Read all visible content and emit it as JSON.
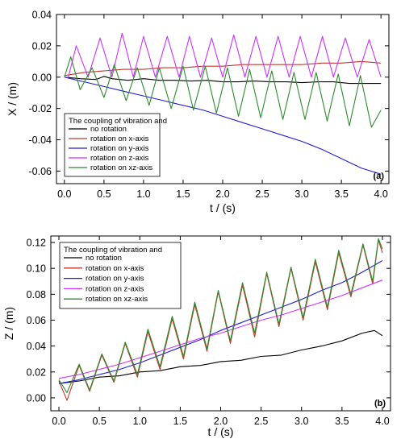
{
  "chart_data": [
    {
      "type": "line",
      "panel_label": "(a)",
      "xlabel": "t / (s)",
      "ylabel": "X / (m)",
      "xlim": [
        -0.1,
        4.1
      ],
      "ylim": [
        -0.068,
        0.04
      ],
      "x_ticks": [
        "0.0",
        "0.5",
        "1.0",
        "1.5",
        "2.0",
        "2.5",
        "3.0",
        "3.5",
        "4.0"
      ],
      "y_ticks": [
        "-0.06",
        "-0.04",
        "-0.02",
        "0.00",
        "0.02",
        "0.04"
      ],
      "legend_title": "The coupling of vibration and",
      "legend_position": "lower-left",
      "series": [
        {
          "name": "no rotation",
          "color": "#000000",
          "points": [
            [
              0.0,
              0.0
            ],
            [
              0.2,
              -0.001
            ],
            [
              0.4,
              -0.0015
            ],
            [
              0.5,
              0.0005
            ],
            [
              0.6,
              -0.001
            ],
            [
              0.8,
              -0.002
            ],
            [
              1.0,
              -0.001
            ],
            [
              1.2,
              -0.002
            ],
            [
              1.4,
              -0.002
            ],
            [
              1.6,
              -0.0025
            ],
            [
              1.8,
              -0.002
            ],
            [
              2.0,
              -0.003
            ],
            [
              2.2,
              -0.003
            ],
            [
              2.4,
              -0.0025
            ],
            [
              2.6,
              -0.003
            ],
            [
              2.8,
              -0.003
            ],
            [
              3.0,
              -0.0035
            ],
            [
              3.2,
              -0.003
            ],
            [
              3.4,
              -0.003
            ],
            [
              3.6,
              -0.004
            ],
            [
              3.8,
              -0.004
            ],
            [
              4.0,
              -0.004
            ]
          ]
        },
        {
          "name": "rotation on x-axis",
          "color": "#c0392b",
          "points": [
            [
              0.0,
              0.001
            ],
            [
              0.25,
              0.003
            ],
            [
              0.5,
              0.004
            ],
            [
              0.75,
              0.005
            ],
            [
              1.0,
              0.005
            ],
            [
              1.25,
              0.006
            ],
            [
              1.5,
              0.006
            ],
            [
              1.75,
              0.007
            ],
            [
              2.0,
              0.007
            ],
            [
              2.25,
              0.008
            ],
            [
              2.5,
              0.008
            ],
            [
              2.75,
              0.008
            ],
            [
              3.0,
              0.008
            ],
            [
              3.25,
              0.009
            ],
            [
              3.5,
              0.009
            ],
            [
              3.75,
              0.01
            ],
            [
              4.0,
              0.009
            ]
          ]
        },
        {
          "name": "rotation on y-axis",
          "color": "#1f1fd6",
          "points": [
            [
              0.0,
              0.0
            ],
            [
              0.25,
              -0.003
            ],
            [
              0.5,
              -0.006
            ],
            [
              0.75,
              -0.009
            ],
            [
              1.0,
              -0.012
            ],
            [
              1.25,
              -0.015
            ],
            [
              1.5,
              -0.018
            ],
            [
              1.75,
              -0.021
            ],
            [
              2.0,
              -0.025
            ],
            [
              2.25,
              -0.029
            ],
            [
              2.5,
              -0.033
            ],
            [
              2.75,
              -0.037
            ],
            [
              3.0,
              -0.041
            ],
            [
              3.25,
              -0.046
            ],
            [
              3.5,
              -0.052
            ],
            [
              3.75,
              -0.058
            ],
            [
              4.0,
              -0.062
            ]
          ]
        },
        {
          "name": "rotation on z-axis",
          "color": "#cc33ff",
          "points": [
            [
              0.0,
              0.0
            ],
            [
              0.05,
              0.0
            ],
            [
              0.15,
              0.02
            ],
            [
              0.3,
              0.0
            ],
            [
              0.45,
              0.025
            ],
            [
              0.6,
              0.0
            ],
            [
              0.73,
              0.028
            ],
            [
              0.87,
              0.0
            ],
            [
              1.0,
              0.026
            ],
            [
              1.15,
              0.0
            ],
            [
              1.3,
              0.026
            ],
            [
              1.45,
              0.0
            ],
            [
              1.58,
              0.026
            ],
            [
              1.72,
              0.0
            ],
            [
              1.86,
              0.025
            ],
            [
              2.0,
              0.0
            ],
            [
              2.14,
              0.027
            ],
            [
              2.28,
              0.0
            ],
            [
              2.42,
              0.026
            ],
            [
              2.56,
              0.0
            ],
            [
              2.7,
              0.026
            ],
            [
              2.84,
              0.0
            ],
            [
              2.98,
              0.026
            ],
            [
              3.12,
              0.0
            ],
            [
              3.26,
              0.026
            ],
            [
              3.4,
              0.0
            ],
            [
              3.55,
              0.025
            ],
            [
              3.7,
              0.0
            ],
            [
              3.85,
              0.024
            ],
            [
              4.0,
              0.0
            ]
          ]
        },
        {
          "name": "rotation on xz-axis",
          "color": "#2e8b2e",
          "points": [
            [
              0.0,
              0.0
            ],
            [
              0.08,
              0.013
            ],
            [
              0.2,
              -0.008
            ],
            [
              0.35,
              0.006
            ],
            [
              0.5,
              -0.013
            ],
            [
              0.63,
              0.008
            ],
            [
              0.78,
              -0.015
            ],
            [
              0.92,
              0.006
            ],
            [
              1.07,
              -0.018
            ],
            [
              1.2,
              0.006
            ],
            [
              1.35,
              -0.02
            ],
            [
              1.5,
              0.007
            ],
            [
              1.63,
              -0.021
            ],
            [
              1.78,
              0.007
            ],
            [
              1.92,
              -0.023
            ],
            [
              2.06,
              0.006
            ],
            [
              2.2,
              -0.025
            ],
            [
              2.34,
              0.005
            ],
            [
              2.48,
              -0.026
            ],
            [
              2.62,
              0.004
            ],
            [
              2.76,
              -0.027
            ],
            [
              2.9,
              0.003
            ],
            [
              3.04,
              -0.027
            ],
            [
              3.18,
              0.003
            ],
            [
              3.32,
              -0.028
            ],
            [
              3.46,
              0.002
            ],
            [
              3.6,
              -0.031
            ],
            [
              3.74,
              0.001
            ],
            [
              3.88,
              -0.032
            ],
            [
              4.0,
              -0.021
            ]
          ]
        }
      ]
    },
    {
      "type": "line",
      "panel_label": "(b)",
      "xlabel": "t / (s)",
      "ylabel": "Z / (m)",
      "xlim": [
        -0.1,
        4.1
      ],
      "ylim": [
        -0.01,
        0.125
      ],
      "x_ticks": [
        "0.0",
        "0.5",
        "1.0",
        "1.5",
        "2.0",
        "2.5",
        "3.0",
        "3.5",
        "4.0"
      ],
      "y_ticks": [
        "0.00",
        "0.02",
        "0.04",
        "0.06",
        "0.08",
        "0.10",
        "0.12"
      ],
      "legend_title": "The coupling of vibration and",
      "legend_position": "top-left",
      "series": [
        {
          "name": "no rotation",
          "color": "#000000",
          "points": [
            [
              0.0,
              0.011
            ],
            [
              0.25,
              0.013
            ],
            [
              0.5,
              0.016
            ],
            [
              0.75,
              0.017
            ],
            [
              1.0,
              0.02
            ],
            [
              1.25,
              0.021
            ],
            [
              1.5,
              0.024
            ],
            [
              1.75,
              0.025
            ],
            [
              2.0,
              0.028
            ],
            [
              2.25,
              0.029
            ],
            [
              2.5,
              0.032
            ],
            [
              2.75,
              0.033
            ],
            [
              3.0,
              0.037
            ],
            [
              3.25,
              0.04
            ],
            [
              3.5,
              0.044
            ],
            [
              3.75,
              0.05
            ],
            [
              3.9,
              0.052
            ],
            [
              4.0,
              0.048
            ]
          ]
        },
        {
          "name": "rotation on x-axis",
          "color": "#c0392b",
          "points": [
            [
              0.0,
              0.013
            ],
            [
              0.1,
              -0.002
            ],
            [
              0.25,
              0.025
            ],
            [
              0.38,
              0.005
            ],
            [
              0.53,
              0.033
            ],
            [
              0.68,
              0.012
            ],
            [
              0.82,
              0.042
            ],
            [
              0.97,
              0.016
            ],
            [
              1.1,
              0.051
            ],
            [
              1.25,
              0.022
            ],
            [
              1.4,
              0.061
            ],
            [
              1.54,
              0.03
            ],
            [
              1.68,
              0.072
            ],
            [
              1.83,
              0.036
            ],
            [
              1.97,
              0.082
            ],
            [
              2.12,
              0.042
            ],
            [
              2.27,
              0.087
            ],
            [
              2.42,
              0.047
            ],
            [
              2.57,
              0.096
            ],
            [
              2.72,
              0.055
            ],
            [
              2.87,
              0.1
            ],
            [
              3.02,
              0.06
            ],
            [
              3.17,
              0.105
            ],
            [
              3.32,
              0.068
            ],
            [
              3.46,
              0.112
            ],
            [
              3.61,
              0.078
            ],
            [
              3.76,
              0.118
            ],
            [
              3.88,
              0.088
            ],
            [
              3.95,
              0.122
            ],
            [
              4.0,
              0.112
            ]
          ]
        },
        {
          "name": "rotation on y-axis",
          "color": "#1f1fd6",
          "points": [
            [
              0.0,
              0.011
            ],
            [
              0.25,
              0.014
            ],
            [
              0.5,
              0.018
            ],
            [
              0.75,
              0.022
            ],
            [
              1.0,
              0.027
            ],
            [
              1.25,
              0.033
            ],
            [
              1.5,
              0.039
            ],
            [
              1.75,
              0.045
            ],
            [
              2.0,
              0.052
            ],
            [
              2.25,
              0.058
            ],
            [
              2.5,
              0.064
            ],
            [
              2.75,
              0.07
            ],
            [
              3.0,
              0.076
            ],
            [
              3.25,
              0.083
            ],
            [
              3.5,
              0.089
            ],
            [
              3.75,
              0.097
            ],
            [
              4.0,
              0.106
            ]
          ]
        },
        {
          "name": "rotation on z-axis",
          "color": "#cc33ff",
          "points": [
            [
              0.0,
              0.015
            ],
            [
              0.25,
              0.018
            ],
            [
              0.5,
              0.022
            ],
            [
              0.75,
              0.026
            ],
            [
              1.0,
              0.031
            ],
            [
              1.25,
              0.036
            ],
            [
              1.5,
              0.041
            ],
            [
              1.75,
              0.046
            ],
            [
              2.0,
              0.05
            ],
            [
              2.25,
              0.055
            ],
            [
              2.5,
              0.06
            ],
            [
              2.75,
              0.064
            ],
            [
              3.0,
              0.069
            ],
            [
              3.25,
              0.074
            ],
            [
              3.5,
              0.079
            ],
            [
              3.75,
              0.085
            ],
            [
              4.0,
              0.091
            ]
          ]
        },
        {
          "name": "rotation on xz-axis",
          "color": "#2e8b2e",
          "points": [
            [
              0.0,
              0.014
            ],
            [
              0.1,
              0.004
            ],
            [
              0.25,
              0.026
            ],
            [
              0.38,
              0.006
            ],
            [
              0.53,
              0.034
            ],
            [
              0.68,
              0.013
            ],
            [
              0.82,
              0.043
            ],
            [
              0.97,
              0.018
            ],
            [
              1.1,
              0.053
            ],
            [
              1.25,
              0.024
            ],
            [
              1.4,
              0.063
            ],
            [
              1.54,
              0.032
            ],
            [
              1.68,
              0.074
            ],
            [
              1.83,
              0.038
            ],
            [
              1.97,
              0.083
            ],
            [
              2.12,
              0.044
            ],
            [
              2.27,
              0.089
            ],
            [
              2.42,
              0.05
            ],
            [
              2.57,
              0.097
            ],
            [
              2.72,
              0.057
            ],
            [
              2.87,
              0.101
            ],
            [
              3.02,
              0.062
            ],
            [
              3.17,
              0.107
            ],
            [
              3.32,
              0.07
            ],
            [
              3.46,
              0.114
            ],
            [
              3.61,
              0.08
            ],
            [
              3.76,
              0.119
            ],
            [
              3.88,
              0.09
            ],
            [
              3.95,
              0.123
            ],
            [
              4.0,
              0.115
            ]
          ]
        }
      ]
    }
  ]
}
